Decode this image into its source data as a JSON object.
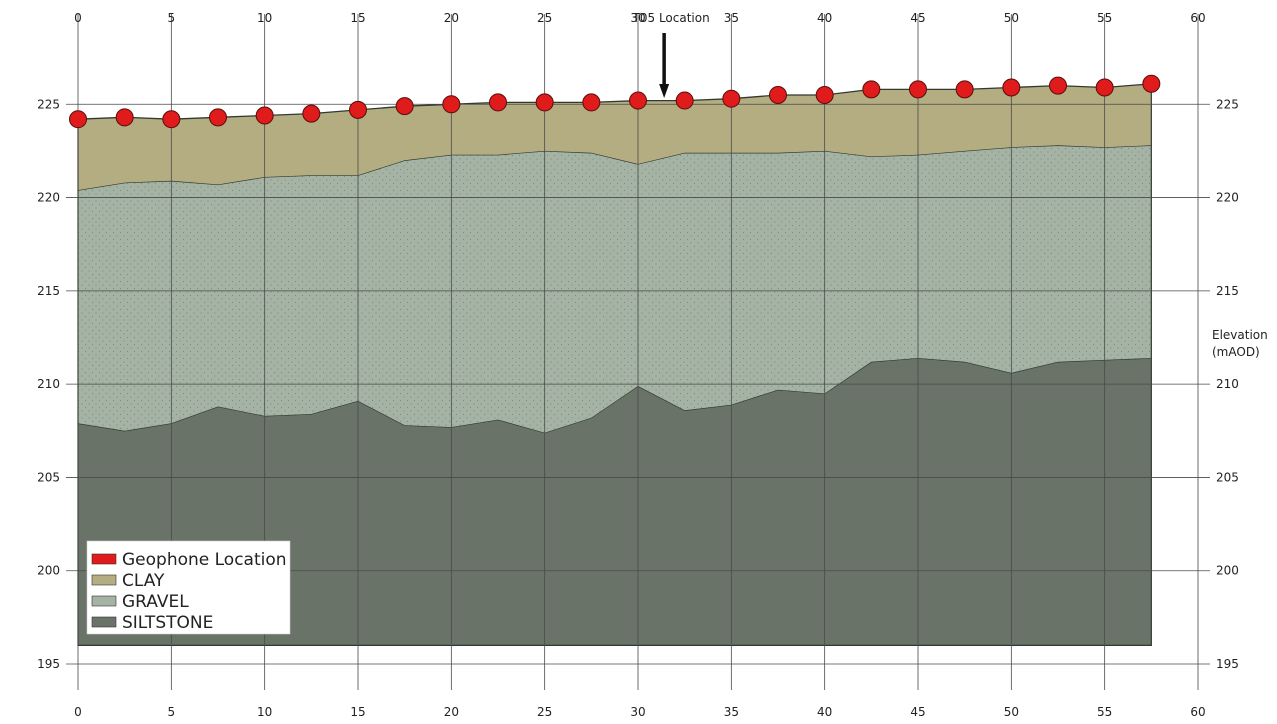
{
  "chart_data": {
    "type": "area",
    "xlim": [
      0,
      60
    ],
    "ylim": [
      195,
      230
    ],
    "x_ticks": [
      0,
      5,
      10,
      15,
      20,
      25,
      30,
      35,
      40,
      45,
      50,
      55,
      60
    ],
    "y_ticks": [
      195,
      200,
      205,
      210,
      215,
      220,
      225
    ],
    "x_tick_labels": [
      "0",
      "5",
      "10",
      "15",
      "20",
      "25",
      "30",
      "35",
      "40",
      "45",
      "50",
      "55",
      "60"
    ],
    "y_tick_labels": [
      "195",
      "200",
      "205",
      "210",
      "215",
      "220",
      "225"
    ],
    "ylabel": "Elevation (mAOD)",
    "ylabel_lines": [
      "Elevation",
      "(mAOD)"
    ],
    "grid": true,
    "legend_position": "bottom-left",
    "base_elevation": 196,
    "annotation": {
      "text": "T05 Location",
      "x": 31.4
    },
    "x": [
      0,
      2.5,
      5,
      7.5,
      10,
      12.5,
      15,
      17.5,
      20,
      22.5,
      25,
      27.5,
      30,
      32.5,
      35,
      37.5,
      40,
      42.5,
      45,
      47.5,
      50,
      52.5,
      55,
      57.5
    ],
    "series": [
      {
        "name": "Geophone Location",
        "kind": "points",
        "color": "#e01b1b",
        "values": [
          224.2,
          224.3,
          224.2,
          224.3,
          224.4,
          224.5,
          224.7,
          224.9,
          225.0,
          225.1,
          225.1,
          225.1,
          225.2,
          225.2,
          225.3,
          225.5,
          225.5,
          225.8,
          225.8,
          225.8,
          225.9,
          226.0,
          225.9,
          226.1
        ]
      },
      {
        "name": "CLAY",
        "kind": "layer",
        "color": "#b4ad82",
        "top": [
          224.2,
          224.3,
          224.2,
          224.3,
          224.4,
          224.5,
          224.7,
          224.9,
          225.0,
          225.1,
          225.1,
          225.1,
          225.2,
          225.2,
          225.3,
          225.5,
          225.5,
          225.8,
          225.8,
          225.8,
          225.9,
          226.0,
          225.9,
          226.1
        ],
        "bottom": [
          220.4,
          220.8,
          220.9,
          220.7,
          221.1,
          221.2,
          221.2,
          222.0,
          222.3,
          222.3,
          222.5,
          222.4,
          221.8,
          222.4,
          222.4,
          222.4,
          222.5,
          222.2,
          222.3,
          222.5,
          222.7,
          222.8,
          222.7,
          222.8
        ]
      },
      {
        "name": "GRAVEL",
        "kind": "layer",
        "color": "#a4b3a3",
        "top": [
          220.4,
          220.8,
          220.9,
          220.7,
          221.1,
          221.2,
          221.2,
          222.0,
          222.3,
          222.3,
          222.5,
          222.4,
          221.8,
          222.4,
          222.4,
          222.4,
          222.5,
          222.2,
          222.3,
          222.5,
          222.7,
          222.8,
          222.7,
          222.8
        ],
        "bottom": [
          207.9,
          207.5,
          207.9,
          208.8,
          208.3,
          208.4,
          209.1,
          207.8,
          207.7,
          208.1,
          207.4,
          208.2,
          209.9,
          208.6,
          208.9,
          209.7,
          209.5,
          211.2,
          211.4,
          211.2,
          210.6,
          211.2,
          211.3,
          211.4
        ]
      },
      {
        "name": "SILTSTONE",
        "kind": "layer",
        "color": "#6a7368",
        "top": [
          207.9,
          207.5,
          207.9,
          208.8,
          208.3,
          208.4,
          209.1,
          207.8,
          207.7,
          208.1,
          207.4,
          208.2,
          209.9,
          208.6,
          208.9,
          209.7,
          209.5,
          211.2,
          211.4,
          211.2,
          210.6,
          211.2,
          211.3,
          211.4
        ],
        "bottom_value": 196
      }
    ],
    "legend": [
      {
        "label": "Geophone Location",
        "color": "#e01b1b"
      },
      {
        "label": "CLAY",
        "color": "#b4ad82"
      },
      {
        "label": "GRAVEL",
        "color": "#a4b3a3"
      },
      {
        "label": "SILTSTONE",
        "color": "#6a7368"
      }
    ]
  }
}
